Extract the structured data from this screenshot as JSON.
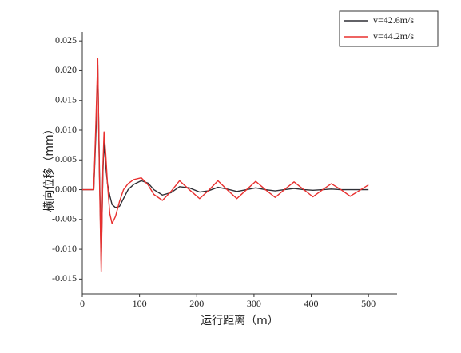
{
  "chart_data": {
    "type": "line",
    "x_label": "运行距离（m）",
    "y_label": "横向位移（mm）",
    "x": [
      0,
      20,
      24,
      27,
      30,
      33,
      36,
      38,
      41,
      44,
      48,
      52,
      58,
      65,
      72,
      80,
      90,
      103,
      115,
      125,
      140,
      155,
      170,
      187,
      205,
      220,
      237,
      253,
      270,
      287,
      303,
      320,
      337,
      353,
      370,
      387,
      403,
      420,
      435,
      452,
      468,
      485,
      500
    ],
    "series": [
      {
        "name": "v=42.6m/s",
        "color": "#2f2f35",
        "values": [
          0,
          0,
          0.01,
          0.021,
          0.003,
          -0.012,
          0.003,
          0.008,
          0.004,
          0.001,
          -0.001,
          -0.0025,
          -0.003,
          -0.0028,
          -0.0015,
          0,
          0.0009,
          0.0015,
          0.0011,
          0,
          -0.0009,
          -0.0005,
          0.0005,
          0.0003,
          -0.0004,
          -0.0002,
          0.0004,
          0.0001,
          -0.0003,
          0,
          0.0003,
          0,
          -0.0002,
          0,
          0.0002,
          0,
          -0.0001,
          0,
          0.0001,
          0,
          0,
          0,
          0
        ]
      },
      {
        "name": "v=44.2m/s",
        "color": "#e8302f",
        "values": [
          0,
          0,
          0.012,
          0.022,
          0.002,
          -0.0137,
          0.004,
          0.0097,
          0.006,
          0.001,
          -0.004,
          -0.0057,
          -0.0045,
          -0.002,
          0,
          0.001,
          0.0017,
          0.002,
          0.0008,
          -0.0008,
          -0.0018,
          -0.0003,
          0.0015,
          0,
          -0.0015,
          -0.0002,
          0.0015,
          0,
          -0.0015,
          0,
          0.0014,
          0,
          -0.0013,
          0,
          0.0013,
          0,
          -0.0012,
          0,
          0.001,
          0,
          -0.0011,
          -0.0001,
          0.0008
        ]
      }
    ],
    "xlim": [
      0,
      550
    ],
    "xticks": [
      0,
      100,
      200,
      300,
      400,
      500
    ],
    "ylim": [
      -0.0175,
      0.0265
    ],
    "yticks": [
      -0.015,
      {
        "value": -0.01,
        "label": "-0.010"
      },
      -0.005,
      {
        "value": 0,
        "label": "0.000"
      },
      0.005,
      {
        "value": 0.01,
        "label": "0.010"
      },
      0.015,
      {
        "value": 0.02,
        "label": "0.020"
      },
      0.025
    ],
    "legend": "upper right"
  }
}
